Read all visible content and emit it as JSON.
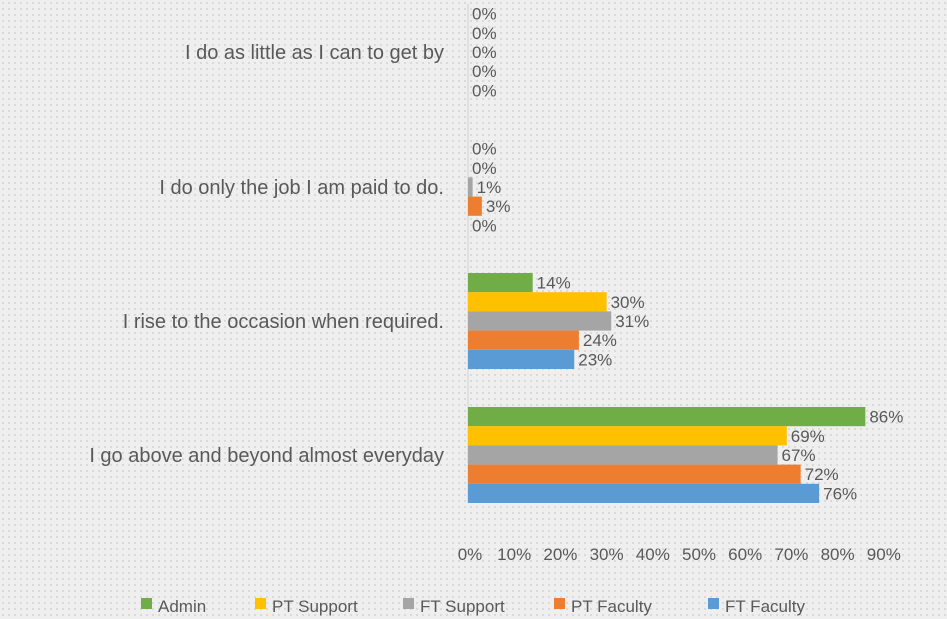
{
  "chart_data": {
    "type": "bar",
    "orientation": "horizontal",
    "categories": [
      "I do as little as I can to get by",
      "I do only the job I am paid to do.",
      "I rise to the occasion when required.",
      "I go above and beyond almost everyday"
    ],
    "series": [
      {
        "name": "Admin",
        "color": "#70ad47",
        "values": [
          0,
          0,
          14,
          86
        ],
        "labels": [
          "0%",
          "0%",
          "14%",
          "86%"
        ]
      },
      {
        "name": "PT Support",
        "color": "#ffc000",
        "values": [
          0,
          0,
          30,
          69
        ],
        "labels": [
          "0%",
          "0%",
          "30%",
          "69%"
        ]
      },
      {
        "name": "FT Support",
        "color": "#a5a5a5",
        "values": [
          0,
          1,
          31,
          67
        ],
        "labels": [
          "0%",
          "1%",
          "31%",
          "67%"
        ]
      },
      {
        "name": "PT Faculty",
        "color": "#ed7d31",
        "values": [
          0,
          3,
          24,
          72
        ],
        "labels": [
          "0%",
          "3%",
          "24%",
          "72%"
        ]
      },
      {
        "name": "FT Faculty",
        "color": "#5b9bd5",
        "values": [
          0,
          0,
          23,
          76
        ],
        "labels": [
          "0%",
          "0%",
          "23%",
          "76%"
        ]
      }
    ],
    "xlim": [
      0,
      90
    ],
    "xticks": [
      {
        "value": 0,
        "label": "0%"
      },
      {
        "value": 10,
        "label": "10%"
      },
      {
        "value": 20,
        "label": "20%"
      },
      {
        "value": 30,
        "label": "30%"
      },
      {
        "value": 40,
        "label": "40%"
      },
      {
        "value": 50,
        "label": "50%"
      },
      {
        "value": 60,
        "label": "60%"
      },
      {
        "value": 70,
        "label": "70%"
      },
      {
        "value": 80,
        "label": "80%"
      },
      {
        "value": 90,
        "label": "90%"
      }
    ],
    "grid": false,
    "legend_position": "bottom"
  }
}
